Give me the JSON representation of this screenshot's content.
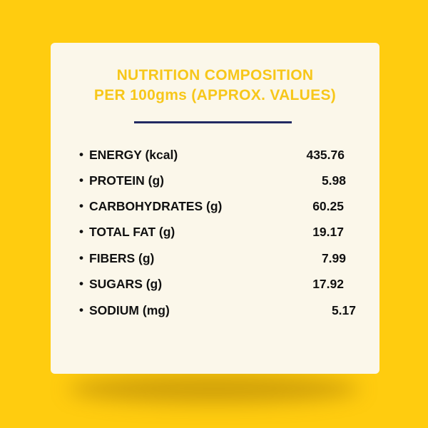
{
  "colors": {
    "background": "#FFCC0F",
    "card": "#FBF7EA",
    "title": "#F7C71A",
    "divider": "#222A63",
    "text": "#111111"
  },
  "title": {
    "line1": "NUTRITION COMPOSITION",
    "line2": "PER 100gms (APPROX. VALUES)"
  },
  "bullet": "•",
  "nutrients": [
    {
      "label": "ENERGY (kcal)",
      "value": "435.76"
    },
    {
      "label": "PROTEIN (g)",
      "value": "5.98"
    },
    {
      "label": "CARBOHYDRATES (g)",
      "value": "60.25"
    },
    {
      "label": "TOTAL FAT (g)",
      "value": "19.17"
    },
    {
      "label": "FIBERS (g)",
      "value": "7.99"
    },
    {
      "label": "SUGARS (g)",
      "value": "17.92"
    },
    {
      "label": "SODIUM (mg)",
      "value": "5.17"
    }
  ]
}
